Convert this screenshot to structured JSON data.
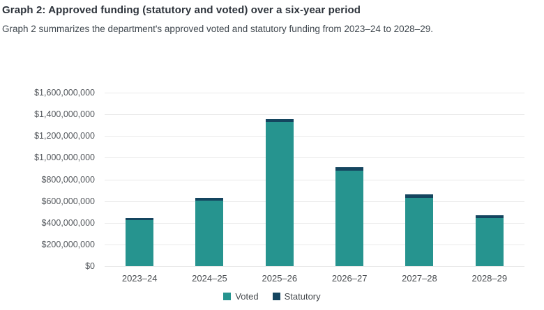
{
  "header": {
    "title": "Graph 2: Approved funding (statutory and voted) over a six-year period",
    "subtitle": "Graph 2 summarizes the department's approved voted and statutory funding from 2023–24 to 2028–29."
  },
  "colors": {
    "voted": "#26948f",
    "statutory": "#14455f",
    "gridline": "#e9e9e9",
    "axis_text": "#54585d"
  },
  "chart_data": {
    "type": "bar",
    "stacked": true,
    "title": "Graph 2: Approved funding (statutory and voted) over a six-year period",
    "xlabel": "",
    "ylabel": "",
    "categories": [
      "2023–24",
      "2024–25",
      "2025–26",
      "2026–27",
      "2027–28",
      "2028–29"
    ],
    "series": [
      {
        "name": "Voted",
        "color": "#26948f",
        "values": [
          425000000,
          607000000,
          1330000000,
          880000000,
          632000000,
          443000000
        ]
      },
      {
        "name": "Statutory",
        "color": "#14455f",
        "values": [
          20000000,
          21000000,
          27000000,
          30000000,
          30000000,
          28000000
        ]
      }
    ],
    "totals": [
      445000000,
      628000000,
      1357000000,
      910000000,
      662000000,
      471000000
    ],
    "ylim": [
      0,
      1600000000
    ],
    "y_tick_interval": 200000000,
    "y_tick_labels_top_to_bottom": [
      "$1,600,000,000",
      "$1,400,000,000",
      "$1,200,000,000",
      "$1,000,000,000",
      "$800,000,000",
      "$600,000,000",
      "$400,000,000",
      "$200,000,000",
      "$0"
    ],
    "grid": "horizontal",
    "legend_position": "bottom-center"
  }
}
